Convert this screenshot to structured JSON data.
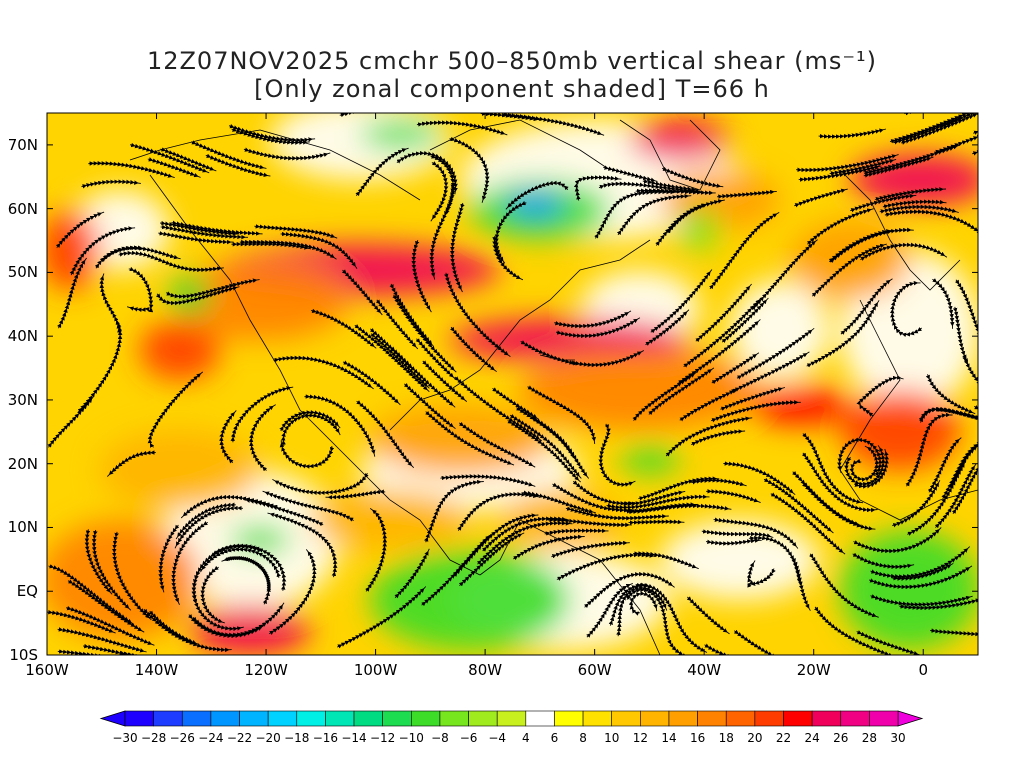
{
  "title": {
    "line1": "12Z07NOV2025 cmchr 500–850mb vertical shear (ms⁻¹)",
    "line2": "[Only zonal component shaded] T=66 h"
  },
  "map": {
    "lat_labels": [
      "70N",
      "60N",
      "50N",
      "40N",
      "30N",
      "20N",
      "10N",
      "EQ",
      "10S"
    ],
    "lat_values": [
      70,
      60,
      50,
      40,
      30,
      20,
      10,
      0,
      -10
    ],
    "lon_labels": [
      "160W",
      "140W",
      "120W",
      "100W",
      "80W",
      "60W",
      "40W",
      "20W",
      "0"
    ],
    "lon_values": [
      -160,
      -140,
      -120,
      -100,
      -80,
      -60,
      -40,
      -20,
      0
    ],
    "lat_range": [
      -10,
      75
    ],
    "lon_range": [
      -160,
      10
    ],
    "field": "zonal component of 500–850mb vertical shear",
    "overlay": "streamlines of shear vector"
  },
  "colorbar": {
    "labels": [
      "−30",
      "−28",
      "−26",
      "−24",
      "−22",
      "−20",
      "−18",
      "−16",
      "−14",
      "−12",
      "−10",
      "−8",
      "−6",
      "−4",
      "4",
      "6",
      "8",
      "10",
      "12",
      "14",
      "16",
      "18",
      "20",
      "22",
      "24",
      "26",
      "28",
      "30"
    ],
    "colors": [
      "#1e00ff",
      "#1e3cff",
      "#0a6eff",
      "#0096ff",
      "#00b4ff",
      "#00d2ff",
      "#00f0e6",
      "#00e6b4",
      "#00dc82",
      "#1edc50",
      "#3cdc28",
      "#78e61e",
      "#a0eb1e",
      "#c8f01e",
      "#ffffff",
      "#ffff00",
      "#ffe100",
      "#ffc800",
      "#ffb400",
      "#ffa000",
      "#ff8200",
      "#ff6400",
      "#ff3c00",
      "#ff0000",
      "#f0005a",
      "#f00082",
      "#f000aa"
    ]
  }
}
